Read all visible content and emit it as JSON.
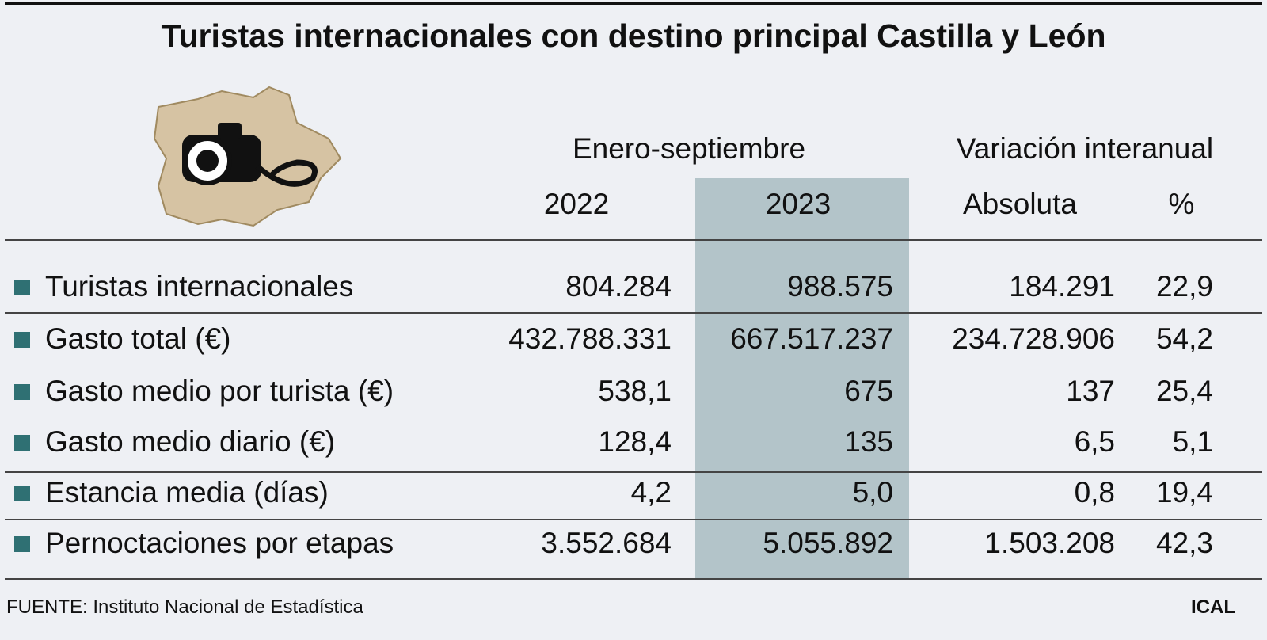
{
  "header": {
    "title": "Turistas internacionales con destino principal Castilla y León"
  },
  "table": {
    "group_headers": [
      "Enero-septiembre",
      "Variación interanual"
    ],
    "columns": [
      "2022",
      "2023",
      "Absoluta",
      "%"
    ],
    "rows": [
      [
        "Turistas internacionales",
        "804.284",
        "988.575",
        "184.291",
        "22,9"
      ],
      [
        "Gasto total (€)",
        "432.788.331",
        "667.517.237",
        "234.728.906",
        "54,2"
      ],
      [
        "Gasto medio por turista (€)",
        "538,1",
        "675",
        "137",
        "25,4"
      ],
      [
        "Gasto medio diario (€)",
        "128,4",
        "135",
        "6,5",
        "5,1"
      ],
      [
        "Estancia media (días)",
        "4,2",
        "5,0",
        "0,8",
        "19,4"
      ],
      [
        "Pernoctaciones por etapas",
        "3.552.684",
        "5.055.892",
        "1.503.208",
        "42,3"
      ]
    ]
  },
  "footer": {
    "source": "FUENTE: Instituto Nacional de Estadística",
    "credit": "ICAL"
  }
}
